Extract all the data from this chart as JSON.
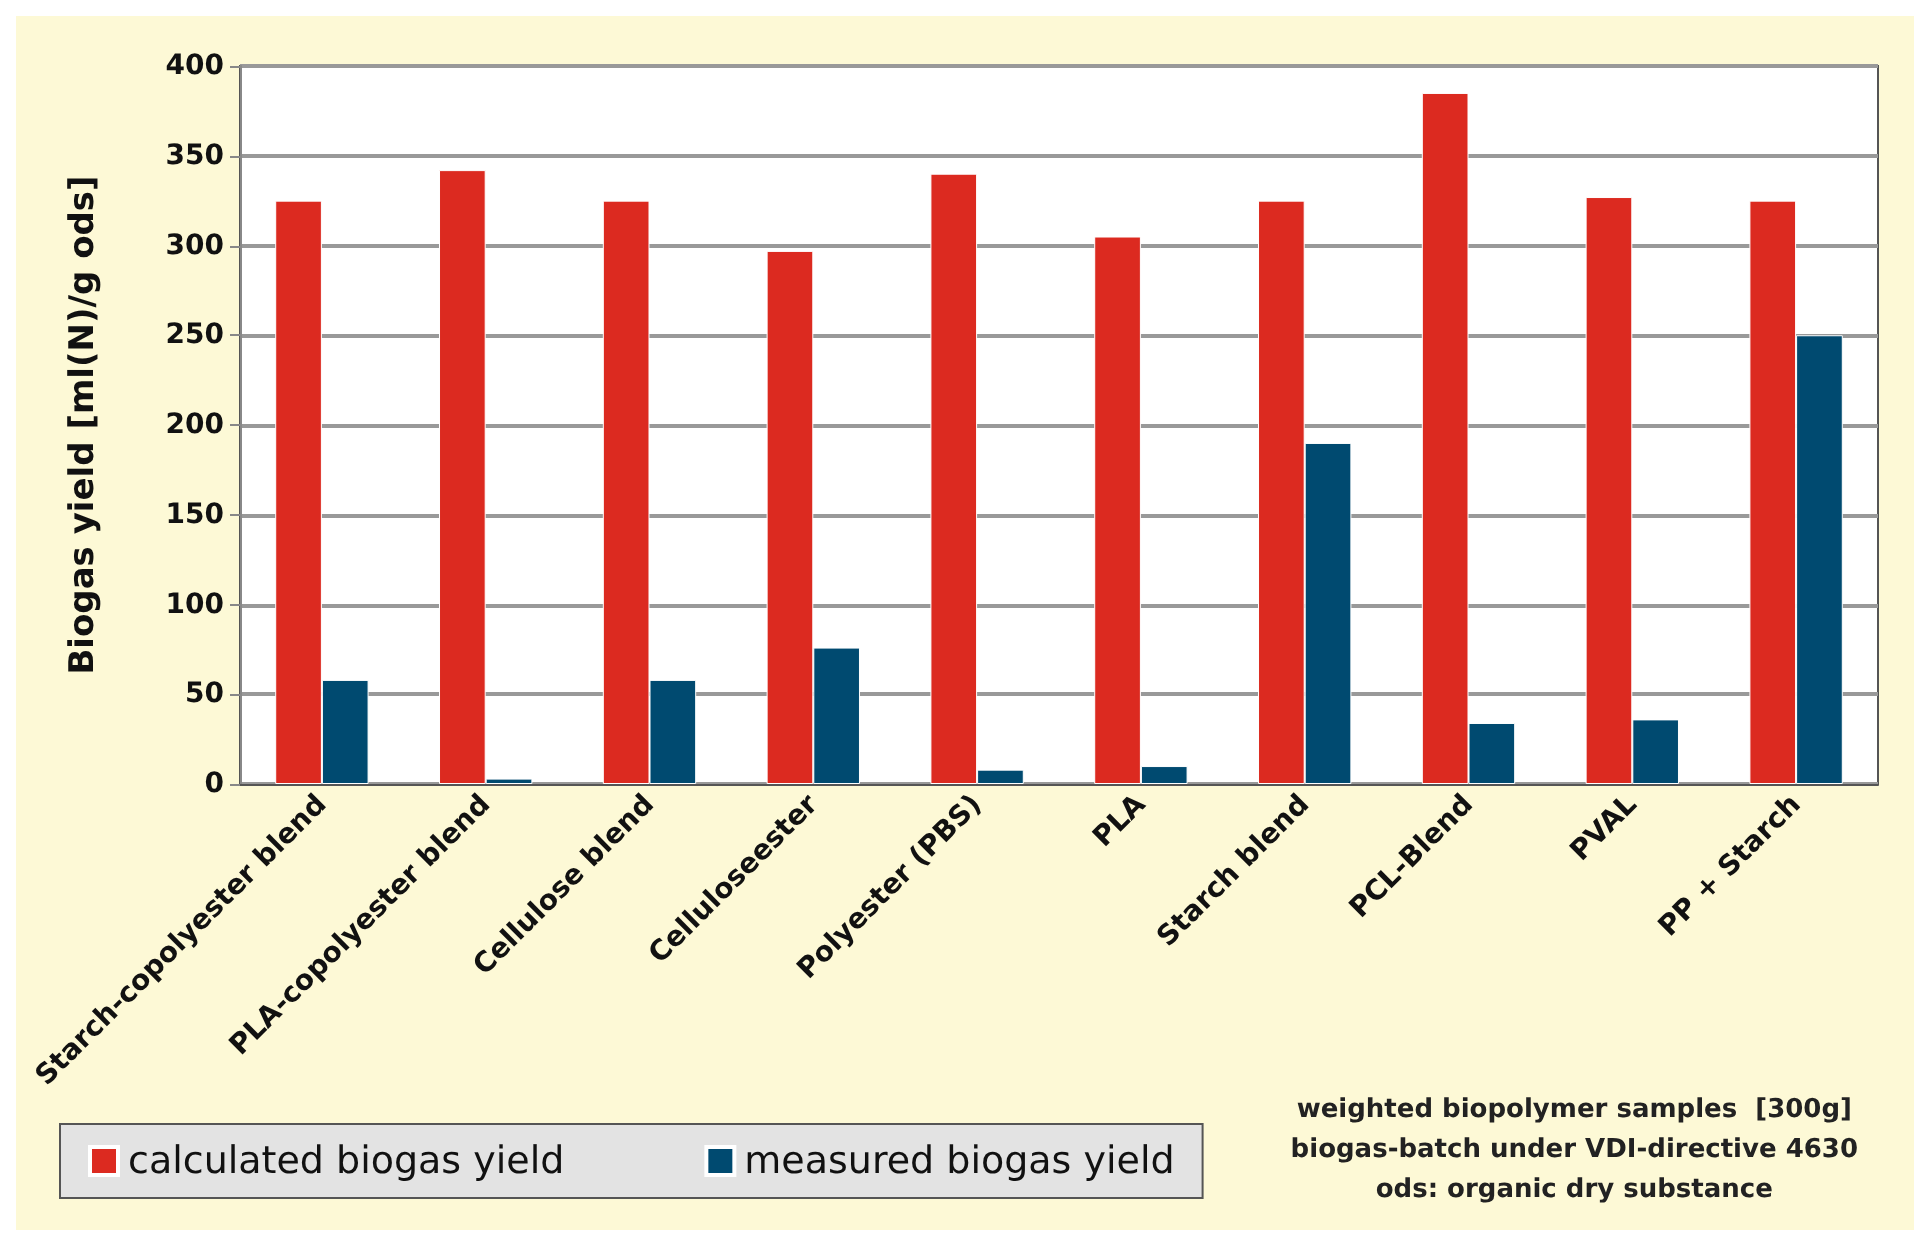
{
  "chart_data": {
    "type": "bar",
    "ylabel": "Biogas yield [ml(N)/g ods]",
    "categories": [
      "Starch-copolyester blend",
      "PLA-copolyester blend",
      "Cellulose blend",
      "Celluloseester",
      "Polyester (PBS)",
      "PLA",
      "Starch blend",
      "PCL-Blend",
      "PVAL",
      "PP + Starch"
    ],
    "series": [
      {
        "name": "calculated biogas yield",
        "color": "#dc2a20",
        "values": [
          325,
          342,
          325,
          297,
          340,
          305,
          325,
          385,
          327,
          325
        ]
      },
      {
        "name": "measured biogas yield",
        "color": "#004a70",
        "values": [
          58,
          3,
          58,
          76,
          8,
          10,
          190,
          34,
          36,
          250
        ]
      }
    ],
    "ylim": [
      0,
      400
    ],
    "yticks": [
      0,
      50,
      100,
      150,
      200,
      250,
      300,
      350,
      400
    ],
    "grid": "y",
    "legend": "bottom left",
    "annotations": [
      "weighted biopolymer samples  [300g]",
      "biogas-batch under VDI-directive 4630",
      "ods: organic dry substance"
    ]
  }
}
